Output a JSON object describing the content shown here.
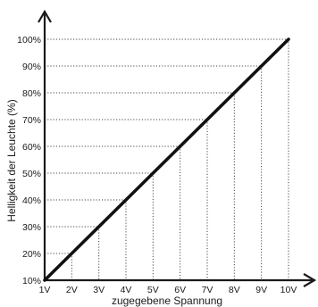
{
  "chart_data": {
    "type": "line",
    "xlabel": "zugegebene Spannung",
    "ylabel": "Helligkeit der Leuchte (%)",
    "x_tick_labels": [
      "1V",
      "2V",
      "3V",
      "4V",
      "5V",
      "6V",
      "7V",
      "8V",
      "9V",
      "10V"
    ],
    "y_tick_labels": [
      "10%",
      "20%",
      "30%",
      "40%",
      "50%",
      "60%",
      "70%",
      "80%",
      "90%",
      "100%"
    ],
    "x_values": [
      1,
      2,
      3,
      4,
      5,
      6,
      7,
      8,
      9,
      10
    ],
    "y_values": [
      10,
      20,
      30,
      40,
      50,
      60,
      70,
      80,
      90,
      100
    ],
    "xlim": [
      1,
      10
    ],
    "ylim": [
      10,
      100
    ],
    "grid": "dotted drop lines from each point to both axes",
    "legend": "none",
    "colors": {
      "line": "#111111",
      "guides": "#444444",
      "axis": "#1a1a1a"
    }
  }
}
